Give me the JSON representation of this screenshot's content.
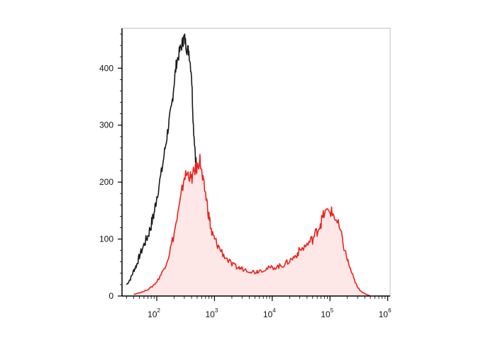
{
  "chart_data": {
    "type": "area",
    "title": "",
    "xlabel": "",
    "ylabel": "",
    "x_scale": "log",
    "xlim": [
      25,
      1100000
    ],
    "ylim": [
      0,
      470
    ],
    "grid": false,
    "x_ticks": [
      {
        "value": 100,
        "base": "10",
        "exp": "2"
      },
      {
        "value": 1000,
        "base": "10",
        "exp": "3"
      },
      {
        "value": 10000,
        "base": "10",
        "exp": "4"
      },
      {
        "value": 100000,
        "base": "10",
        "exp": "5"
      },
      {
        "value": 1000000,
        "base": "10",
        "exp": "6"
      }
    ],
    "y_ticks": [
      {
        "value": 0,
        "label": "0"
      },
      {
        "value": 100,
        "label": "100"
      },
      {
        "value": 200,
        "label": "200"
      },
      {
        "value": 300,
        "label": "300"
      },
      {
        "value": 400,
        "label": "400"
      }
    ],
    "series": [
      {
        "color": "#1a1a1a",
        "filled": false,
        "points": [
          [
            30,
            20
          ],
          [
            35,
            30
          ],
          [
            40,
            45
          ],
          [
            45,
            55
          ],
          [
            50,
            70
          ],
          [
            60,
            90
          ],
          [
            70,
            105
          ],
          [
            80,
            125
          ],
          [
            90,
            145
          ],
          [
            100,
            175
          ],
          [
            120,
            215
          ],
          [
            140,
            260
          ],
          [
            160,
            300
          ],
          [
            180,
            330
          ],
          [
            200,
            375
          ],
          [
            220,
            410
          ],
          [
            250,
            430
          ],
          [
            280,
            445
          ],
          [
            300,
            455
          ],
          [
            330,
            435
          ],
          [
            360,
            430
          ],
          [
            400,
            390
          ],
          [
            430,
            300
          ],
          [
            470,
            245
          ],
          [
            520,
            200
          ],
          [
            600,
            150
          ],
          [
            700,
            90
          ],
          [
            800,
            45
          ],
          [
            900,
            25
          ],
          [
            1000,
            15
          ],
          [
            1200,
            10
          ],
          [
            1500,
            8
          ],
          [
            2000,
            5
          ],
          [
            2500,
            3
          ],
          [
            3000,
            2
          ],
          [
            4000,
            1
          ],
          [
            6000,
            0
          ]
        ]
      },
      {
        "color": "#e8231e",
        "fill": "#fde7e7",
        "filled": true,
        "points": [
          [
            40,
            3
          ],
          [
            60,
            8
          ],
          [
            80,
            15
          ],
          [
            100,
            25
          ],
          [
            130,
            45
          ],
          [
            160,
            70
          ],
          [
            200,
            110
          ],
          [
            250,
            160
          ],
          [
            300,
            210
          ],
          [
            350,
            215
          ],
          [
            400,
            205
          ],
          [
            450,
            220
          ],
          [
            500,
            225
          ],
          [
            560,
            240
          ],
          [
            620,
            205
          ],
          [
            700,
            180
          ],
          [
            800,
            140
          ],
          [
            900,
            110
          ],
          [
            1000,
            100
          ],
          [
            1200,
            85
          ],
          [
            1500,
            70
          ],
          [
            2000,
            55
          ],
          [
            2500,
            50
          ],
          [
            3000,
            48
          ],
          [
            4000,
            45
          ],
          [
            5000,
            42
          ],
          [
            6000,
            45
          ],
          [
            8000,
            48
          ],
          [
            10000,
            50
          ],
          [
            13000,
            52
          ],
          [
            16000,
            55
          ],
          [
            20000,
            62
          ],
          [
            25000,
            70
          ],
          [
            30000,
            80
          ],
          [
            40000,
            90
          ],
          [
            50000,
            100
          ],
          [
            60000,
            115
          ],
          [
            70000,
            130
          ],
          [
            80000,
            145
          ],
          [
            100000,
            150
          ],
          [
            120000,
            140
          ],
          [
            150000,
            115
          ],
          [
            180000,
            80
          ],
          [
            220000,
            50
          ],
          [
            260000,
            30
          ],
          [
            300000,
            15
          ],
          [
            350000,
            8
          ],
          [
            400000,
            4
          ],
          [
            500000,
            0
          ]
        ]
      }
    ]
  }
}
